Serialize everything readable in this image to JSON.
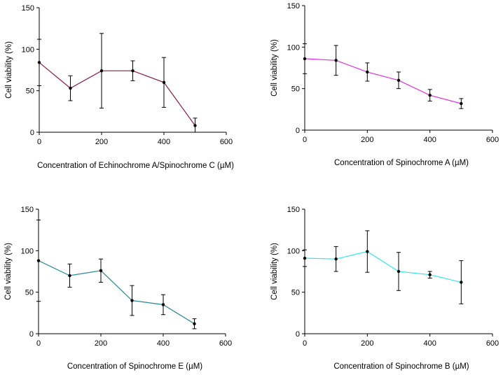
{
  "chart_data": [
    {
      "type": "line",
      "xlabel": "Concentration of Echinochrome A/Spinochrome C (µM)",
      "ylabel": "Cell viability (%)",
      "xlim": [
        0,
        600
      ],
      "ylim": [
        0,
        150
      ],
      "xticks": [
        0,
        200,
        400,
        600
      ],
      "yticks": [
        0,
        50,
        100,
        150
      ],
      "line_color": "#8B1A4A",
      "points": [
        {
          "x": 0,
          "y": 84,
          "err": 28
        },
        {
          "x": 100,
          "y": 53,
          "err": 15
        },
        {
          "x": 200,
          "y": 74,
          "err": 45
        },
        {
          "x": 300,
          "y": 74,
          "err": 12
        },
        {
          "x": 400,
          "y": 60,
          "err": 30
        },
        {
          "x": 500,
          "y": 8,
          "err": 9
        }
      ]
    },
    {
      "type": "line",
      "xlabel": "Concentration of Spinochrome A (µM)",
      "ylabel": "Cell viability (%)",
      "xlim": [
        0,
        600
      ],
      "ylim": [
        0,
        150
      ],
      "xticks": [
        0,
        200,
        400,
        600
      ],
      "yticks": [
        0,
        50,
        100,
        150
      ],
      "line_color": "#E030E0",
      "points": [
        {
          "x": 0,
          "y": 86,
          "err": 18
        },
        {
          "x": 100,
          "y": 84,
          "err": 18
        },
        {
          "x": 200,
          "y": 70,
          "err": 11
        },
        {
          "x": 300,
          "y": 60,
          "err": 10
        },
        {
          "x": 400,
          "y": 42,
          "err": 7
        },
        {
          "x": 500,
          "y": 32,
          "err": 6
        }
      ]
    },
    {
      "type": "line",
      "xlabel": "Concentration of Spinochrome E (µM)",
      "ylabel": "Cell viability (%)",
      "xlim": [
        0,
        600
      ],
      "ylim": [
        0,
        150
      ],
      "xticks": [
        0,
        200,
        400,
        600
      ],
      "yticks": [
        0,
        50,
        100,
        150
      ],
      "line_color": "#2A8A94",
      "points": [
        {
          "x": 0,
          "y": 88,
          "err": 49
        },
        {
          "x": 100,
          "y": 70,
          "err": 14
        },
        {
          "x": 200,
          "y": 76,
          "err": 14
        },
        {
          "x": 300,
          "y": 40,
          "err": 18
        },
        {
          "x": 400,
          "y": 35,
          "err": 12
        },
        {
          "x": 500,
          "y": 12,
          "err": 6
        }
      ]
    },
    {
      "type": "line",
      "xlabel": "Concentration of Spinochrome B (µM)",
      "ylabel": "Cell viability (%)",
      "xlim": [
        0,
        600
      ],
      "ylim": [
        0,
        150
      ],
      "xticks": [
        0,
        200,
        400,
        600
      ],
      "yticks": [
        0,
        50,
        100,
        150
      ],
      "line_color": "#30E8F0",
      "points": [
        {
          "x": 0,
          "y": 91,
          "err": 10
        },
        {
          "x": 100,
          "y": 90,
          "err": 15
        },
        {
          "x": 200,
          "y": 99,
          "err": 25
        },
        {
          "x": 300,
          "y": 75,
          "err": 23
        },
        {
          "x": 400,
          "y": 71,
          "err": 4
        },
        {
          "x": 500,
          "y": 62,
          "err": 26
        }
      ]
    }
  ]
}
